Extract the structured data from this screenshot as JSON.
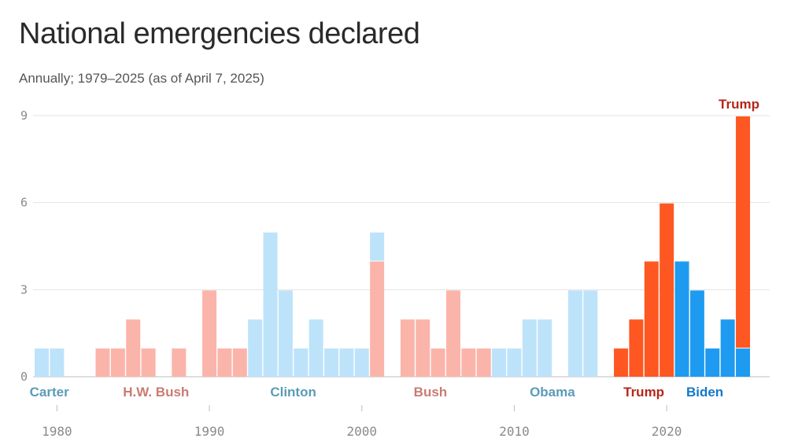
{
  "chart_data": {
    "type": "bar",
    "stacked": true,
    "title": "National emergencies declared",
    "subtitle": "Annually; 1979–2025 (as of April 7, 2025)",
    "xlabel": "",
    "ylabel": "",
    "ylim": [
      0,
      9
    ],
    "yticks": [
      0,
      3,
      6,
      9
    ],
    "xticks": [
      1980,
      1990,
      2000,
      2010,
      2020
    ],
    "years": [
      1979,
      1980,
      1981,
      1982,
      1983,
      1984,
      1985,
      1986,
      1987,
      1988,
      1989,
      1990,
      1991,
      1992,
      1993,
      1994,
      1995,
      1996,
      1997,
      1998,
      1999,
      2000,
      2001,
      2002,
      2003,
      2004,
      2005,
      2006,
      2007,
      2008,
      2009,
      2010,
      2011,
      2012,
      2013,
      2014,
      2015,
      2016,
      2017,
      2018,
      2019,
      2020,
      2021,
      2022,
      2023,
      2024,
      2025
    ],
    "segments": [
      [
        {
          "v": 1,
          "p": "carter"
        }
      ],
      [
        {
          "v": 1,
          "p": "carter"
        }
      ],
      [],
      [],
      [
        {
          "v": 1,
          "p": "reagan"
        }
      ],
      [
        {
          "v": 1,
          "p": "reagan"
        }
      ],
      [
        {
          "v": 2,
          "p": "reagan"
        }
      ],
      [
        {
          "v": 1,
          "p": "reagan"
        }
      ],
      [],
      [
        {
          "v": 1,
          "p": "reagan"
        }
      ],
      [],
      [
        {
          "v": 3,
          "p": "hwbush"
        }
      ],
      [
        {
          "v": 1,
          "p": "hwbush"
        }
      ],
      [
        {
          "v": 1,
          "p": "hwbush"
        }
      ],
      [
        {
          "v": 2,
          "p": "clinton"
        }
      ],
      [
        {
          "v": 5,
          "p": "clinton"
        }
      ],
      [
        {
          "v": 3,
          "p": "clinton"
        }
      ],
      [
        {
          "v": 1,
          "p": "clinton"
        }
      ],
      [
        {
          "v": 2,
          "p": "clinton"
        }
      ],
      [
        {
          "v": 1,
          "p": "clinton"
        }
      ],
      [
        {
          "v": 1,
          "p": "clinton"
        }
      ],
      [
        {
          "v": 1,
          "p": "clinton"
        }
      ],
      [
        {
          "v": 4,
          "p": "bush"
        },
        {
          "v": 1,
          "p": "clinton"
        }
      ],
      [],
      [
        {
          "v": 2,
          "p": "bush"
        }
      ],
      [
        {
          "v": 2,
          "p": "bush"
        }
      ],
      [
        {
          "v": 1,
          "p": "bush"
        }
      ],
      [
        {
          "v": 3,
          "p": "bush"
        }
      ],
      [
        {
          "v": 1,
          "p": "bush"
        }
      ],
      [
        {
          "v": 1,
          "p": "bush"
        }
      ],
      [
        {
          "v": 1,
          "p": "obama"
        }
      ],
      [
        {
          "v": 1,
          "p": "obama"
        }
      ],
      [
        {
          "v": 2,
          "p": "obama"
        }
      ],
      [
        {
          "v": 2,
          "p": "obama"
        }
      ],
      [],
      [
        {
          "v": 3,
          "p": "obama"
        }
      ],
      [
        {
          "v": 3,
          "p": "obama"
        }
      ],
      [],
      [
        {
          "v": 1,
          "p": "trump"
        }
      ],
      [
        {
          "v": 2,
          "p": "trump"
        }
      ],
      [
        {
          "v": 4,
          "p": "trump"
        }
      ],
      [
        {
          "v": 6,
          "p": "trump"
        }
      ],
      [
        {
          "v": 4,
          "p": "biden"
        }
      ],
      [
        {
          "v": 3,
          "p": "biden"
        }
      ],
      [
        {
          "v": 1,
          "p": "biden"
        }
      ],
      [
        {
          "v": 2,
          "p": "biden"
        }
      ],
      [
        {
          "v": 1,
          "p": "biden"
        },
        {
          "v": 8,
          "p": "trump"
        }
      ]
    ],
    "party_colors": {
      "carter": "#bde3fb",
      "reagan": "#fbb4aa",
      "hwbush": "#fbb4aa",
      "clinton": "#bde3fb",
      "bush": "#fbb4aa",
      "obama": "#bde3fb",
      "trump": "#ff5722",
      "biden": "#1e9bf0"
    },
    "president_labels": [
      {
        "text": "Carter",
        "year": 1979.5,
        "color": "#5b9bb8"
      },
      {
        "text": "H.W. Bush",
        "year": 1986.5,
        "color": "#c97b73"
      },
      {
        "text": "Clinton",
        "year": 1995.5,
        "color": "#5b9bb8"
      },
      {
        "text": "Bush",
        "year": 2004.5,
        "color": "#c97b73"
      },
      {
        "text": "Obama",
        "year": 2012.5,
        "color": "#5b9bb8"
      },
      {
        "text": "Trump",
        "year": 2018.5,
        "color": "#b5261a"
      },
      {
        "text": "Biden",
        "year": 2022.5,
        "color": "#1479c9"
      }
    ],
    "top_label": {
      "text": "Trump",
      "year": 2025,
      "color": "#b5261a"
    }
  }
}
